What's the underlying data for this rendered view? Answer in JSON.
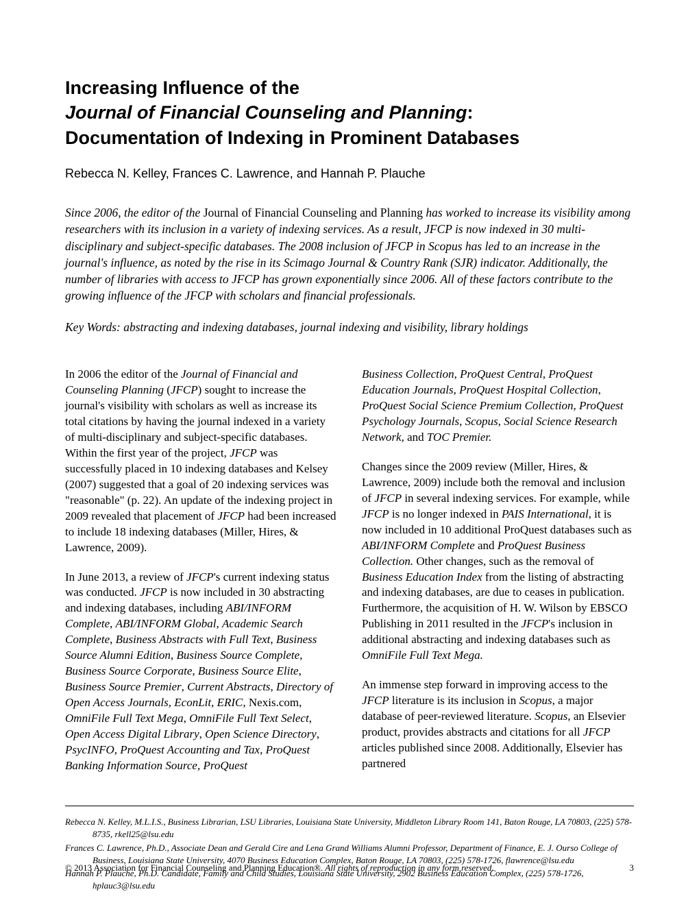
{
  "title": {
    "line1": "Increasing Influence of the",
    "line2_italic": "Journal of Financial Counseling and Planning",
    "line2_suffix": ":",
    "line3": "Documentation of Indexing in Prominent Databases"
  },
  "authors": "Rebecca N. Kelley, Frances C. Lawrence, and Hannah P. Plauche",
  "abstract": {
    "prefix": "Since 2006, the editor of the ",
    "roman": "Journal of Financial Counseling and Planning",
    "rest": " has worked to increase its visibility among researchers with its inclusion in a variety of indexing services. As a result, JFCP is now indexed in 30 multi-disciplinary and subject-specific databases. The 2008 inclusion of JFCP in Scopus has led to an increase in the journal's influence, as noted by the rise in its Scimago Journal & Country Rank (SJR) indicator. Additionally, the number of libraries with access to JFCP has grown exponentially since 2006. All of these factors contribute to the growing influence of the JFCP with scholars and financial professionals."
  },
  "keywords": "Key Words: abstracting and indexing databases, journal indexing and visibility, library holdings",
  "body": {
    "col1_p1": "In 2006 the editor of the <em>Journal of Financial and Counseling Planning</em> (<em>JFCP</em>) sought to increase the journal's visibility with scholars as well as increase its total citations by having the journal indexed in a variety of multi-disciplinary and subject-specific databases. Within the first year of the project, <em>JFCP</em> was successfully placed in 10 indexing databases and Kelsey (2007) suggested that a goal of 20 indexing services was \"reasonable\" (p. 22). An update of the indexing project in 2009 revealed that placement of <em>JFCP</em> had been increased to include 18 indexing databases (Miller, Hires, & Lawrence, 2009).",
    "col1_p2": "In June 2013, a review of <em>JFCP</em>'s current indexing status was conducted. <em>JFCP</em> is now included in 30 abstracting and indexing databases, including <em>ABI/INFORM Complete</em>, <em>ABI/INFORM Global</em>, <em>Academic Search Complete</em>, <em>Business Abstracts with Full Text</em>, <em>Business Source Alumni Edition</em>, <em>Business Source Complete</em>, <em>Business Source Corporate</em>, <em>Business Source Elite</em>, <em>Business Source Premier</em>, <em>Current Abstracts</em>, <em>Directory of Open Access Journals</em>, <em>EconLit</em>, <em>ERIC</em>, Nexis.com, <em>OmniFile Full Text Mega</em>, <em>OmniFile Full Text Select</em>, <em>Open Access Digital Library</em>, <em>Open Science Directory</em>, <em>PsycINFO</em>, <em>ProQuest Accounting and Tax, ProQuest Banking Information Source, ProQuest</em>",
    "col2_p1": "<em>Business Collection</em>, <em>ProQuest Central</em>, <em>ProQuest Education Journals</em>, <em>ProQuest Hospital Collection</em>, <em>ProQuest Social Science Premium Collection</em>, <em>ProQuest Psychology Journals</em>, <em>Scopus</em>, <em>Social Science Research Network,</em> and <em>TOC Premier.</em>",
    "col2_p2": "Changes since the 2009 review (Miller, Hires, & Lawrence, 2009) include both the removal and inclusion of <em>JFCP</em> in several indexing services. For example, while <em>JFCP</em> is no longer indexed in <em>PAIS International</em>, it is now included in 10 additional ProQuest databases such as <em>ABI/INFORM Complete</em> and <em>ProQuest Business Collection.</em> Other changes, such as the removal of <em>Business Education Index</em> from the listing of abstracting and indexing databases, are due to ceases in publication. Furthermore, the acquisition of H. W. Wilson by EBSCO Publishing in 2011 resulted in the <em>JFCP</em>'s inclusion in additional abstracting and indexing databases such as <em>OmniFile Full Text Mega.</em>",
    "col2_p3": "An immense step forward in improving access to the <em>JFCP</em> literature is its inclusion in <em>Scopus</em>, a major database of peer-reviewed literature. <em>Scopus</em>, an Elsevier product, provides abstracts and citations for all <em>JFCP</em> articles published since 2008. Additionally, Elsevier has partnered"
  },
  "author_notes": {
    "n1": "Rebecca N. Kelley, M.L.I.S., Business Librarian, LSU Libraries, Louisiana State University, Middleton Library Room 141, Baton Rouge, LA 70803, (225) 578-8735, rkell25@lsu.edu",
    "n2": "Frances C. Lawrence, Ph.D., Associate Dean and Gerald Cire and Lena Grand Williams Alumni Professor, Department of Finance, E. J. Ourso College of Business, Louisiana State University, 4070 Business Education Complex, Baton Rouge, LA 70803, (225) 578-1726, flawrence@lsu.edu",
    "n3": "Hannah P. Plauche, Ph.D. Candidate, Family and Child Studies, Louisiana State University, 2902 Business Education Complex, (225) 578-1726, hplauc3@lsu.edu"
  },
  "footer": {
    "copyright_prefix": "© 2013 Association for Financial Counseling and Planning Education®. ",
    "copyright_ital": "All rights of reproduction in any form reserved.",
    "pagenum": "3"
  }
}
